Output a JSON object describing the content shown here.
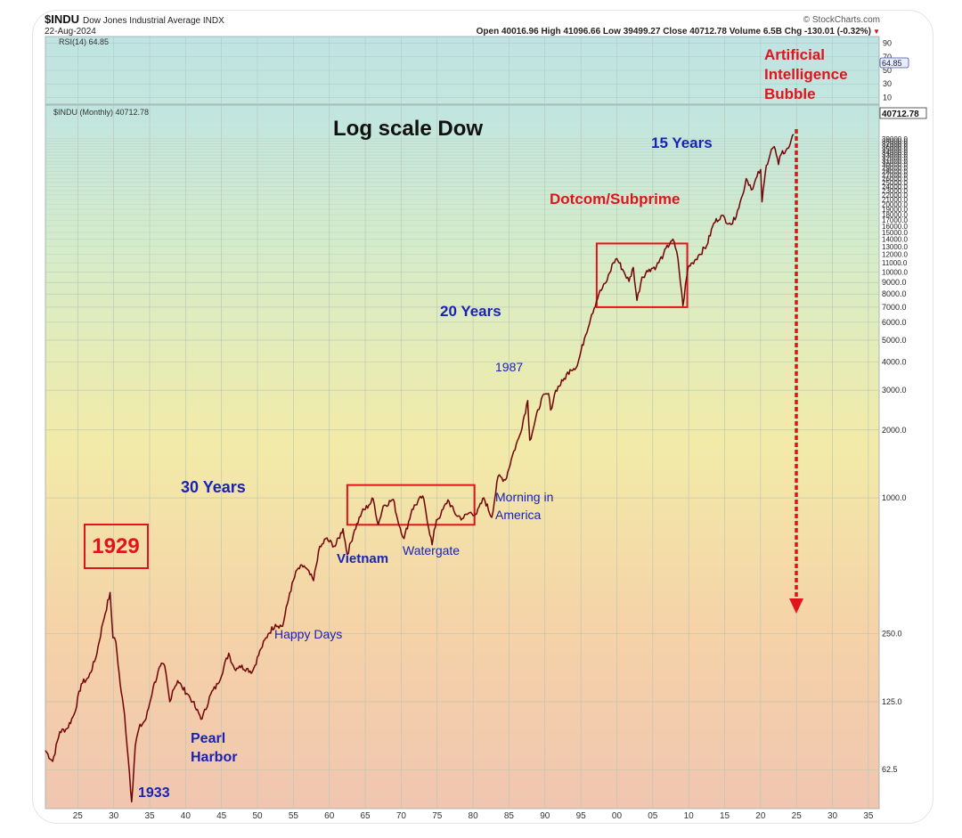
{
  "header": {
    "symbol": "$INDU",
    "name": "Dow Jones Industrial Average INDX",
    "date": "22-Aug-2024",
    "brand": "© StockCharts.com",
    "ohlc": "Open 40016.96 High 41096.66 Low 39499.27 Close 40712.78 Volume 6.5B Chg -130.01 (-0.32%)",
    "chg_marker": "▼"
  },
  "rsi": {
    "label": "RSI(14) 64.85",
    "value": 64.85,
    "value_label": "64.85",
    "ticks": [
      "90",
      "70",
      "50",
      "30",
      "10"
    ]
  },
  "price": {
    "legend": "$INDU (Monthly) 40712.78",
    "last_label": "40712.78"
  },
  "annotations": {
    "title": "Log scale Dow",
    "ai_bubble": [
      "Artificial",
      "Intelligence",
      "Bubble"
    ],
    "fifteen_years": "15 Years",
    "dotcom": "Dotcom/Subprime",
    "twenty_years": "20 Years",
    "y1987": "1987",
    "thirty_years": "30 Years",
    "morning": [
      "Morning in",
      "America"
    ],
    "vietnam": "Vietnam",
    "watergate": "Watergate",
    "y1929": "1929",
    "happy_days": "Happy Days",
    "pearl_harbor": [
      "Pearl",
      "Harbor"
    ],
    "y1933": "1933"
  },
  "colors": {
    "price_line": "#9b1010",
    "annotation_blue": "#1a22b5",
    "annotation_red": "#e0141a",
    "annotation_black": "#111111",
    "box_red": "#e0141a"
  },
  "chart_data": {
    "type": "line",
    "title": "Log scale Dow",
    "y_scale": "log",
    "ylim": [
      42,
      55000
    ],
    "y_ticks": [
      62.5,
      125.0,
      250.0,
      1000.0,
      2000.0,
      3000.0,
      4000.0,
      5000.0,
      6000.0,
      7000.0,
      8000.0,
      9000.0,
      10000.0,
      11000.0,
      12000.0,
      13000.0,
      14000.0,
      15000.0,
      16000.0,
      17000.0,
      18000.0,
      19000.0,
      20000.0,
      21000.0,
      22000.0,
      23000.0,
      24000.0,
      25000.0,
      26000.0,
      27000.0,
      28000.0,
      29000.0,
      30000.0,
      31000.0,
      32000.0,
      33000.0,
      34000.0,
      35000.0,
      36000.0,
      37000.0,
      38000.0,
      39000.0
    ],
    "y_tick_labels": [
      "62.5",
      "125.0",
      "250.0",
      "1000.0",
      "2000.0",
      "3000.0",
      "4000.0",
      "5000.0",
      "6000.0",
      "7000.0",
      "8000.0",
      "9000.0",
      "10000.0",
      "11000.0",
      "12000.0",
      "13000.0",
      "14000.0",
      "15000.0",
      "16000.0",
      "17000.0",
      "18000.0",
      "19000.0",
      "20000.0",
      "21000.0",
      "22000.0",
      "23000.0",
      "24000.0",
      "25000.0",
      "26000.0",
      "27000.0",
      "28000.0",
      "29000.0",
      "30000.0",
      "31000.0",
      "32000.0",
      "33000.0",
      "34000.0",
      "35000.0",
      "36000.0",
      "37000.0",
      "38000.0",
      "39000.0"
    ],
    "xlim": [
      1920.5,
      2036.5
    ],
    "x_ticks": [
      1925,
      1930,
      1935,
      1940,
      1945,
      1950,
      1955,
      1960,
      1965,
      1970,
      1975,
      1980,
      1985,
      1990,
      1995,
      2000,
      2005,
      2010,
      2015,
      2020,
      2025,
      2030,
      2035
    ],
    "x_tick_labels": [
      "25",
      "30",
      "35",
      "40",
      "45",
      "50",
      "55",
      "60",
      "65",
      "70",
      "75",
      "80",
      "85",
      "90",
      "95",
      "00",
      "05",
      "10",
      "15",
      "20",
      "25",
      "30",
      "35"
    ],
    "series": [
      {
        "x": [
          1920.5,
          1921.5,
          1922.5,
          1923.5,
          1924.5,
          1925.5,
          1926.5,
          1927.5,
          1928.5,
          1929.5,
          1929.7,
          1929.9,
          1930.3,
          1930.9,
          1931.5,
          1932.2,
          1932.5,
          1933.0,
          1933.5,
          1934.5,
          1935.5,
          1936.5,
          1937.1,
          1937.8,
          1938.2,
          1938.9,
          1939.5,
          1940.3,
          1941.0,
          1941.5,
          1942.3,
          1943.5,
          1944.5,
          1946.0,
          1946.8,
          1947.5,
          1948.5,
          1949.3,
          1950.5,
          1951.5,
          1952.5,
          1953.5,
          1954.5,
          1955.5,
          1956.5,
          1957.8,
          1958.5,
          1959.5,
          1960.8,
          1961.9,
          1962.5,
          1963.5,
          1964.5,
          1965.5,
          1966.1,
          1966.8,
          1967.5,
          1968.9,
          1969.5,
          1970.4,
          1971.5,
          1973.0,
          1974.3,
          1974.9,
          1975.5,
          1976.5,
          1977.5,
          1978.5,
          1979.5,
          1980.5,
          1981.5,
          1982.6,
          1983.5,
          1984.5,
          1985.5,
          1986.5,
          1987.6,
          1987.9,
          1988.5,
          1989.5,
          1990.5,
          1990.8,
          1991.5,
          1992.5,
          1993.5,
          1994.5,
          1995.5,
          1996.5,
          1997.5,
          1998.5,
          1999.5,
          2000.0,
          2000.8,
          2001.7,
          2002.3,
          2002.8,
          2003.5,
          2004.5,
          2005.5,
          2006.5,
          2007.5,
          2007.8,
          2008.5,
          2009.2,
          2009.9,
          2010.5,
          2011.5,
          2012.5,
          2013.5,
          2014.5,
          2015.7,
          2016.1,
          2016.8,
          2017.5,
          2018.0,
          2018.9,
          2019.5,
          2020.0,
          2020.2,
          2020.8,
          2021.5,
          2021.9,
          2022.5,
          2022.9,
          2023.5,
          2023.9,
          2024.3,
          2024.64
        ],
        "values": [
          76,
          68,
          92,
          95,
          110,
          150,
          160,
          195,
          280,
          381,
          300,
          240,
          230,
          150,
          110,
          60,
          45,
          80,
          95,
          105,
          145,
          180,
          180,
          125,
          140,
          155,
          145,
          135,
          125,
          115,
          105,
          135,
          150,
          205,
          175,
          180,
          175,
          170,
          215,
          250,
          275,
          270,
          380,
          480,
          500,
          430,
          580,
          660,
          610,
          730,
          560,
          720,
          860,
          930,
          990,
          760,
          920,
          985,
          800,
          660,
          890,
          1020,
          620,
          800,
          840,
          980,
          850,
          810,
          860,
          850,
          1000,
          820,
          1250,
          1200,
          1550,
          1900,
          2700,
          1800,
          2100,
          2750,
          2900,
          2450,
          3000,
          3300,
          3700,
          3850,
          5100,
          6500,
          8000,
          9000,
          11000,
          11500,
          10300,
          9100,
          10500,
          7500,
          9500,
          10300,
          10600,
          12000,
          13700,
          14000,
          11500,
          7100,
          10500,
          11000,
          12000,
          13100,
          16500,
          17800,
          16500,
          16400,
          18800,
          22000,
          26000,
          23300,
          26500,
          28500,
          20500,
          29700,
          35000,
          36000,
          30000,
          33500,
          34500,
          35500,
          39000,
          40712.78
        ]
      }
    ],
    "rsi_ylim": [
      0,
      100
    ],
    "rsi_last": 64.85,
    "boxes": [
      {
        "x": [
          1962.5,
          1980.2
        ],
        "y": [
          760,
          1140
        ]
      },
      {
        "x": [
          1997.2,
          2009.8
        ],
        "y": [
          7000,
          13400
        ]
      }
    ]
  }
}
